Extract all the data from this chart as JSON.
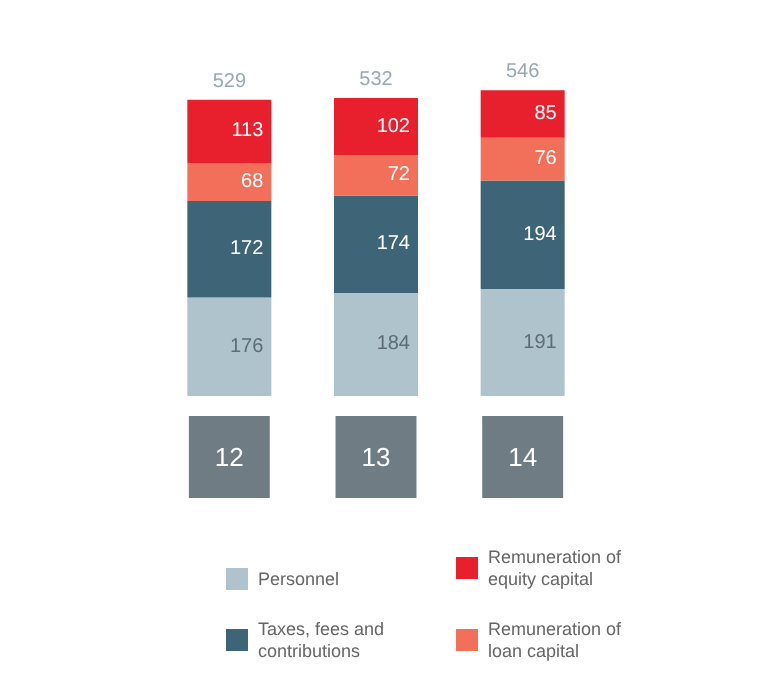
{
  "chart_data": {
    "type": "bar",
    "stacked": true,
    "data_labels": true,
    "legend": "bottom",
    "categories": [
      "12",
      "13",
      "14"
    ],
    "series": [
      {
        "name": "Personnel",
        "color": "#afc3cd",
        "values": [
          176,
          184,
          191
        ]
      },
      {
        "name": "Taxes, fees and contributions",
        "color": "#3e6477",
        "values": [
          172,
          174,
          194
        ]
      },
      {
        "name": "Remuneration of loan capital",
        "color": "#f2705a",
        "values": [
          68,
          72,
          76
        ]
      },
      {
        "name": "Remuneration of equity capital",
        "color": "#e8202e",
        "values": [
          113,
          102,
          85
        ]
      }
    ],
    "totals": [
      "529",
      "532",
      "546"
    ]
  }
}
